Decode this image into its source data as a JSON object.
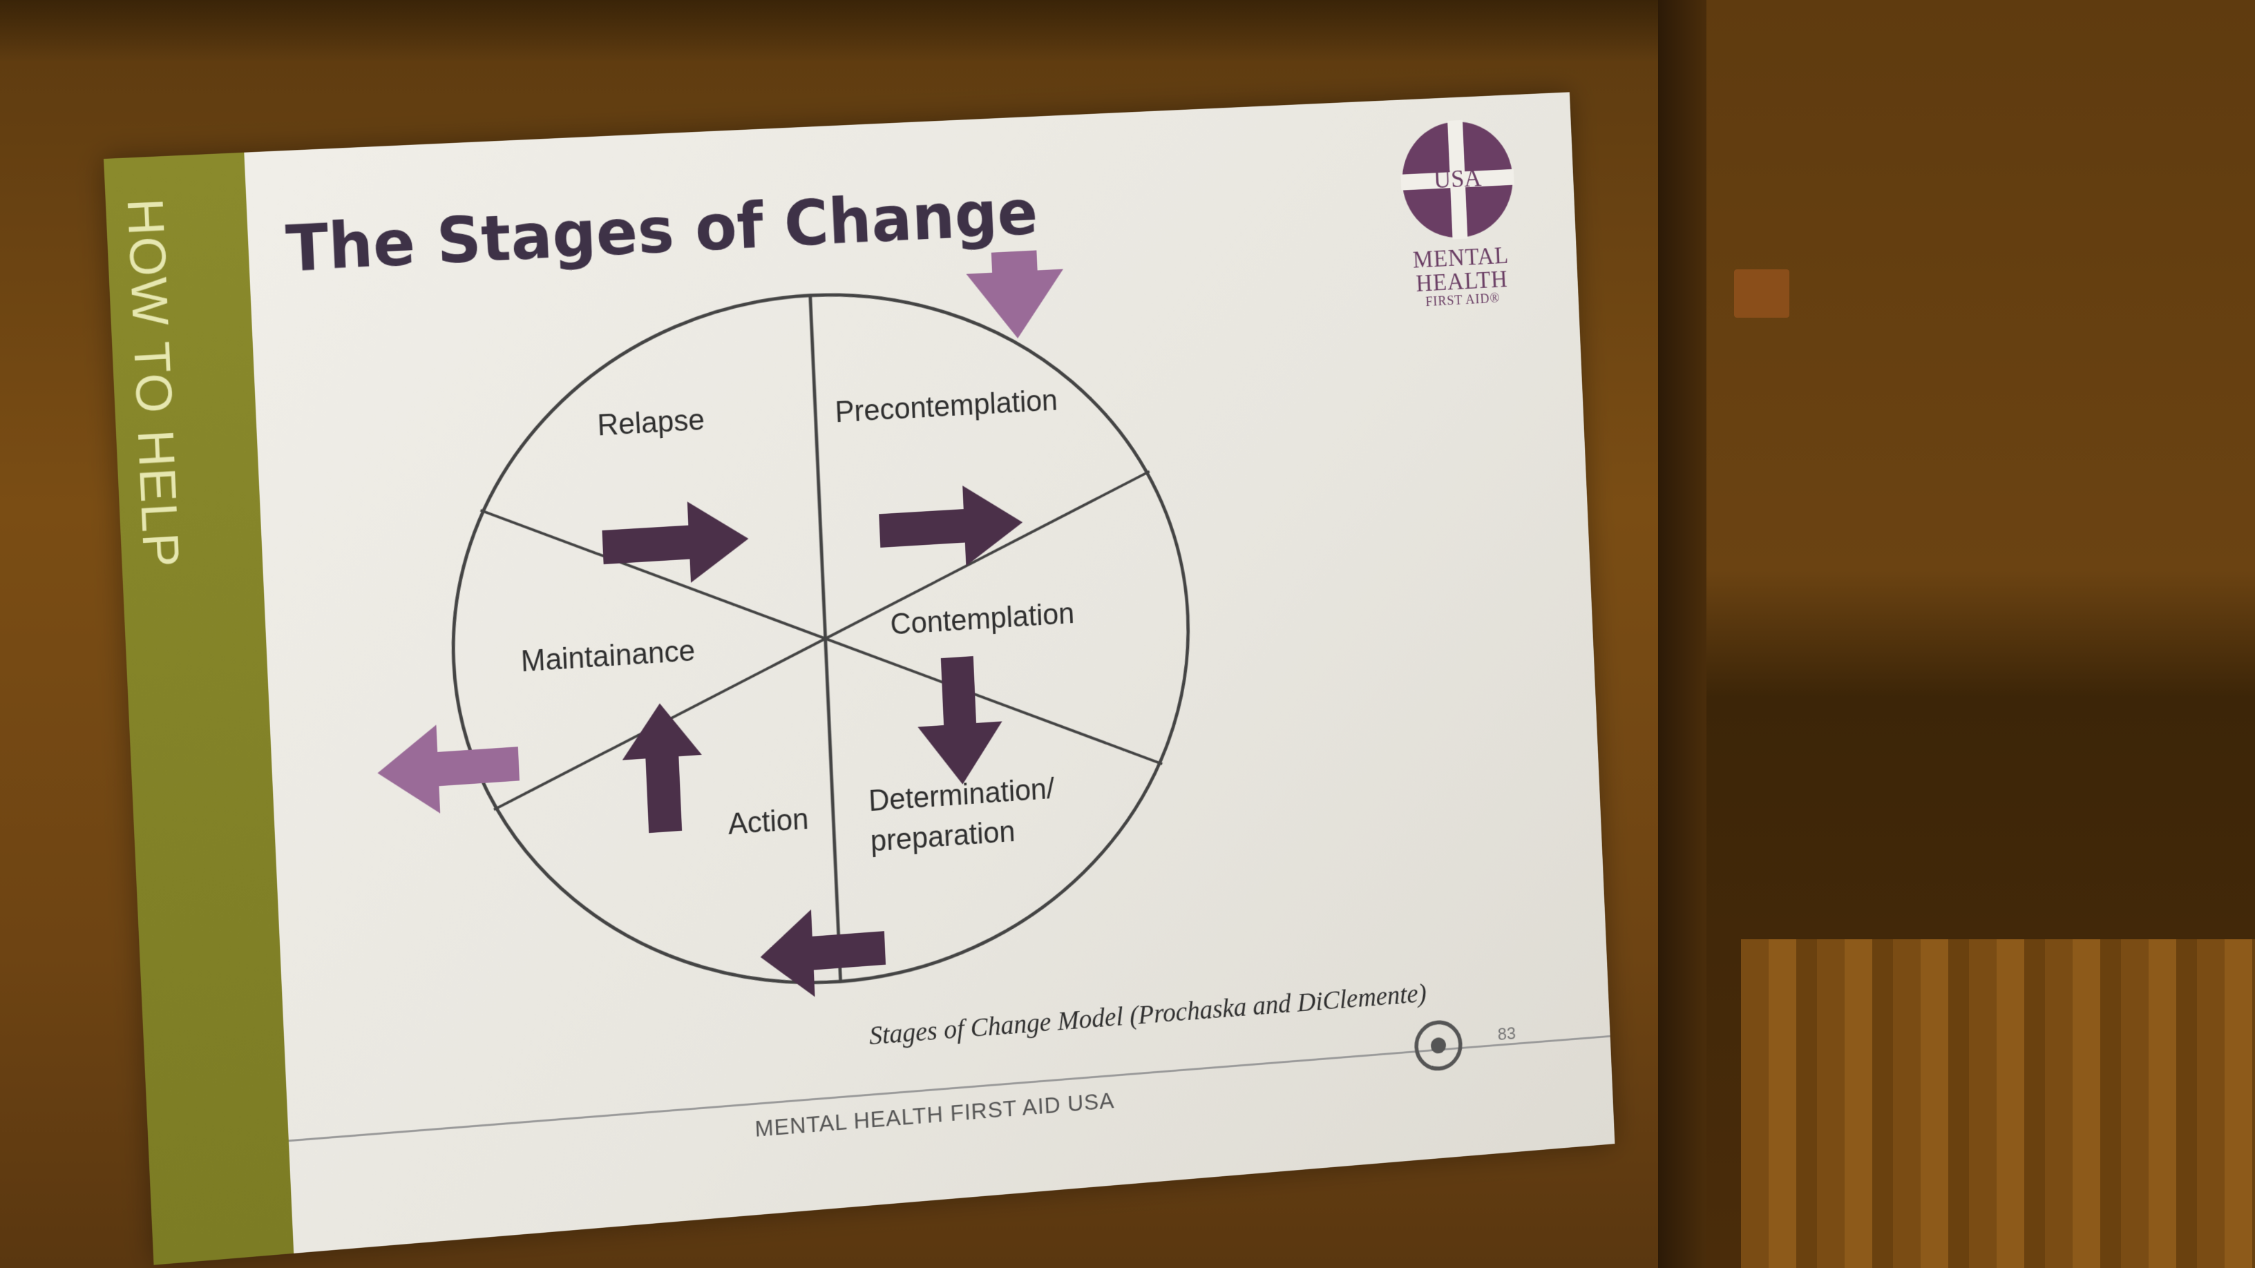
{
  "slide": {
    "sidebar_label": "HOW TO HELP",
    "title": "The Stages of Change",
    "logo": {
      "top_text": "USA",
      "lines": [
        "MENTAL",
        "HEALTH",
        "FIRST AID®"
      ]
    },
    "stages": {
      "relapse": "Relapse",
      "precontemplation": "Precontemplation",
      "contemplation": "Contemplation",
      "determination_line1": "Determination/",
      "determination_line2": "preparation",
      "action": "Action",
      "maintenance": "Maintainance"
    },
    "source": "Stages of Change Model (Prochaska and DiClemente)",
    "footer": "MENTAL HEALTH FIRST AID USA",
    "page_number": "83"
  },
  "colors": {
    "accent_sidebar": "#8a8a2c",
    "arrow_dark": "#4b3049",
    "arrow_light": "#9a6b98",
    "title": "#3e3247"
  }
}
